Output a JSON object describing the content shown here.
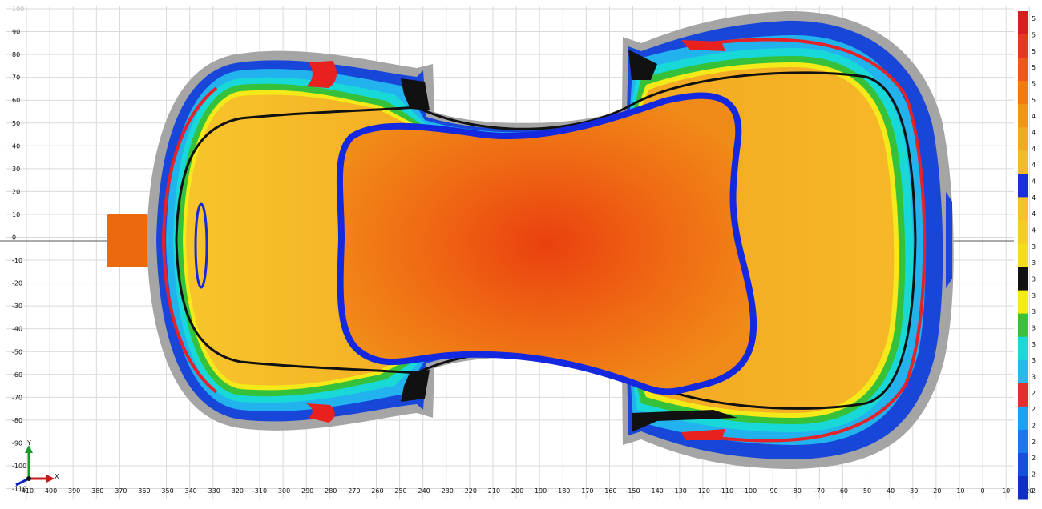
{
  "viewport": {
    "x_ticks": [
      "-410",
      "-400",
      "-390",
      "-380",
      "-370",
      "-360",
      "-350",
      "-340",
      "-330",
      "-320",
      "-310",
      "-300",
      "-290",
      "-280",
      "-270",
      "-260",
      "-250",
      "-240",
      "-230",
      "-220",
      "-210",
      "-200",
      "-190",
      "-180",
      "-170",
      "-160",
      "-150",
      "-140",
      "-130",
      "-120",
      "-110",
      "-100",
      "-90",
      "-80",
      "-70",
      "-60",
      "-50",
      "-40",
      "-30",
      "-20",
      "-10",
      "0",
      "10",
      "20"
    ],
    "y_ticks": [
      "100",
      "90",
      "80",
      "70",
      "60",
      "50",
      "40",
      "30",
      "20",
      "10",
      "0",
      "-10",
      "-20",
      "-30",
      "-40",
      "-50",
      "-60",
      "-70",
      "-80",
      "-90",
      "-100",
      "-110"
    ],
    "axis_triad": {
      "x_label": "X",
      "y_label": "Y"
    }
  },
  "colors": {
    "background": "#ffffff",
    "grid": "#d9d9d9",
    "axis": "#666666",
    "rim": "#a6a6a6",
    "contour_black": "#111111",
    "contour_blue": "#1428e0",
    "legend_bands": [
      "#d71e1e",
      "#e23a1c",
      "#ec5a18",
      "#f07a14",
      "#f39418",
      "#f5a825",
      "#f6b82c",
      "#1a2fd8",
      "#f6c02e",
      "#f6cc2a",
      "#f6dc20",
      "#111111",
      "#f4ec18",
      "#39c238",
      "#1fd6d8",
      "#2ab8f0",
      "#e03030",
      "#1fa0f0",
      "#1a78e8",
      "#1450d8",
      "#1030c4"
    ]
  },
  "legend": {
    "labels": [
      "5",
      "5",
      "5",
      "5",
      "5",
      "5",
      "4",
      "4",
      "4",
      "4",
      "4",
      "4",
      "4",
      "4",
      "3",
      "3",
      "3",
      "3",
      "3",
      "3",
      "3",
      "3",
      "3",
      "2",
      "2",
      "2",
      "2",
      "2",
      "2",
      "2"
    ]
  }
}
